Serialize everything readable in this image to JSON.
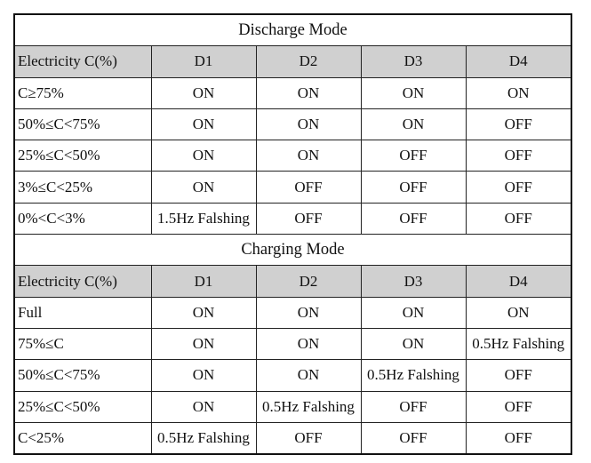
{
  "sections": [
    {
      "title": "Discharge Mode",
      "headers": [
        "Electricity C(%)",
        "D1",
        "D2",
        "D3",
        "D4"
      ],
      "rows": [
        [
          "C≥75%",
          "ON",
          "ON",
          "ON",
          "ON"
        ],
        [
          "50%≤C<75%",
          "ON",
          "ON",
          "ON",
          "OFF"
        ],
        [
          "25%≤C<50%",
          "ON",
          "ON",
          "OFF",
          "OFF"
        ],
        [
          "3%≤C<25%",
          "ON",
          "OFF",
          "OFF",
          "OFF"
        ],
        [
          "0%<C<3%",
          "1.5Hz Falshing",
          "OFF",
          "OFF",
          "OFF"
        ]
      ]
    },
    {
      "title": "Charging Mode",
      "headers": [
        "Electricity C(%)",
        "D1",
        "D2",
        "D3",
        "D4"
      ],
      "rows": [
        [
          "Full",
          "ON",
          "ON",
          "ON",
          "ON"
        ],
        [
          "75%≤C",
          "ON",
          "ON",
          "ON",
          "0.5Hz Falshing"
        ],
        [
          "50%≤C<75%",
          "ON",
          "ON",
          "0.5Hz Falshing",
          "OFF"
        ],
        [
          "25%≤C<50%",
          "ON",
          "0.5Hz Falshing",
          "OFF",
          "OFF"
        ],
        [
          "C<25%",
          "0.5Hz Falshing",
          "OFF",
          "OFF",
          "OFF"
        ]
      ]
    }
  ],
  "colors": {
    "header_bg": "#d0d0d0",
    "border": "#111111"
  }
}
